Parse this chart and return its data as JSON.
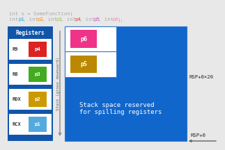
{
  "bg_color": "#e8e8e8",
  "code_line1": "int x = SomeFunction(",
  "code_line2_parts": [
    {
      "text": "int ",
      "color": "#aaaaaa"
    },
    {
      "text": "p1",
      "color": "#00aaff"
    },
    {
      "text": ", int ",
      "color": "#aaaaaa"
    },
    {
      "text": "p2",
      "color": "#ff8800"
    },
    {
      "text": ", int ",
      "color": "#aaaaaa"
    },
    {
      "text": "p3",
      "color": "#88cc44"
    },
    {
      "text": ", int ",
      "color": "#aaaaaa"
    },
    {
      "text": "p4",
      "color": "#ff3333"
    },
    {
      "text": ", int ",
      "color": "#aaaaaa"
    },
    {
      "text": "p5",
      "color": "#cc44cc"
    },
    {
      "text": ", int ",
      "color": "#aaaaaa"
    },
    {
      "text": "p6",
      "color": "#ff88aa"
    },
    {
      "text": ");",
      "color": "#aaaaaa"
    }
  ],
  "register_bg": "#1155aa",
  "register_label_color": "#ffffff",
  "registers": [
    {
      "name": "R9",
      "param": "p4",
      "box_color": "#dd2222"
    },
    {
      "name": "R8",
      "param": "p3",
      "box_color": "#44aa22"
    },
    {
      "name": "RDX",
      "param": "p2",
      "box_color": "#cc9900"
    },
    {
      "name": "RCX",
      "param": "p1",
      "box_color": "#55aadd"
    }
  ],
  "stack_bg": "#1166cc",
  "stack_top_bg": "#ffffff",
  "stack_params": [
    {
      "name": "p6",
      "box_color": "#ee3388"
    },
    {
      "name": "p5",
      "box_color": "#bb8800"
    }
  ],
  "stack_text": "Stack space reserved\nfor spilling registers",
  "stack_text_color": "#ffffff",
  "arrow_color": "#888888",
  "label_rsp20": "RSP+0×20",
  "label_rsp0": "RSP+0",
  "label_stack": "Stack (grows downward)",
  "code_color": "#aaaaaa"
}
